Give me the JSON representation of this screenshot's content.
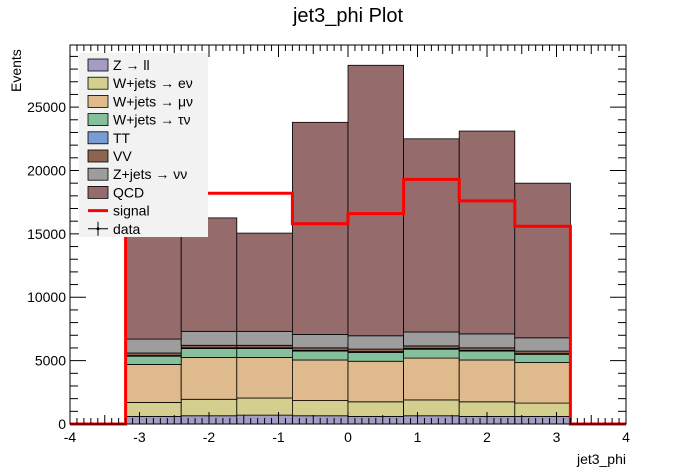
{
  "chart_data": {
    "type": "bar",
    "title": "jet3_phi Plot",
    "xlabel": "jet3_phi",
    "ylabel": "Events",
    "xlim": [
      -4,
      4
    ],
    "ylim": [
      0,
      29900
    ],
    "x_ticks": [
      "-4",
      "-3",
      "-2",
      "-1",
      "0",
      "1",
      "2",
      "3",
      "4"
    ],
    "y_ticks": [
      "0",
      "5000",
      "10000",
      "15000",
      "20000",
      "25000"
    ],
    "bin_edges": [
      -3.2,
      -2.4,
      -1.6,
      -0.8,
      0.0,
      0.8,
      1.6,
      2.4,
      3.2
    ],
    "stack_order": [
      "Z → ll",
      "W+jets → eν",
      "W+jets → μν",
      "W+jets → τν",
      "TT",
      "VV",
      "Z+jets → νν",
      "QCD"
    ],
    "series": [
      {
        "name": "Z → ll",
        "color": "#a59cc6",
        "values": [
          600,
          650,
          700,
          650,
          600,
          650,
          600,
          600
        ]
      },
      {
        "name": "W+jets → eν",
        "color": "#d4cf8f",
        "values": [
          1100,
          1300,
          1350,
          1200,
          1150,
          1250,
          1150,
          1050
        ]
      },
      {
        "name": "W+jets → μν",
        "color": "#deba8c",
        "values": [
          3000,
          3300,
          3200,
          3200,
          3200,
          3300,
          3300,
          3200
        ]
      },
      {
        "name": "W+jets → τν",
        "color": "#86bf9c",
        "values": [
          650,
          700,
          700,
          700,
          700,
          700,
          700,
          650
        ]
      },
      {
        "name": "TT",
        "color": "#7b9bd3",
        "values": [
          50,
          60,
          60,
          60,
          60,
          60,
          60,
          50
        ]
      },
      {
        "name": "VV",
        "color": "#8c6450",
        "values": [
          200,
          200,
          200,
          200,
          200,
          200,
          200,
          200
        ]
      },
      {
        "name": "Z+jets → νν",
        "color": "#9d9d9d",
        "values": [
          1100,
          1100,
          1100,
          1050,
          1050,
          1100,
          1100,
          1050
        ]
      },
      {
        "name": "QCD",
        "color": "#956b6b",
        "values": [
          9100,
          8950,
          7750,
          16740,
          21340,
          15240,
          16000,
          12200
        ]
      }
    ],
    "signal": {
      "name": "signal",
      "color": "#ff0000",
      "values": [
        18200,
        18200,
        18200,
        15800,
        16600,
        19300,
        17600,
        15600
      ]
    },
    "data": {
      "name": "data",
      "values": []
    },
    "legend": {
      "position": "top-left",
      "entries": [
        {
          "label": "Z → ll",
          "kind": "box",
          "color": "#a59cc6"
        },
        {
          "label": "W+jets → eν",
          "kind": "box",
          "color": "#d4cf8f"
        },
        {
          "label": "W+jets → μν",
          "kind": "box",
          "color": "#deba8c"
        },
        {
          "label": "W+jets → τν",
          "kind": "box",
          "color": "#86bf9c"
        },
        {
          "label": "TT",
          "kind": "box",
          "color": "#7b9bd3"
        },
        {
          "label": "VV",
          "kind": "box",
          "color": "#8c6450"
        },
        {
          "label": "Z+jets → νν",
          "kind": "box",
          "color": "#9d9d9d"
        },
        {
          "label": "QCD",
          "kind": "box",
          "color": "#956b6b"
        },
        {
          "label": "signal",
          "kind": "line",
          "color": "#ff0000"
        },
        {
          "label": "data",
          "kind": "marker",
          "color": "#000000"
        }
      ]
    },
    "grid": false
  }
}
